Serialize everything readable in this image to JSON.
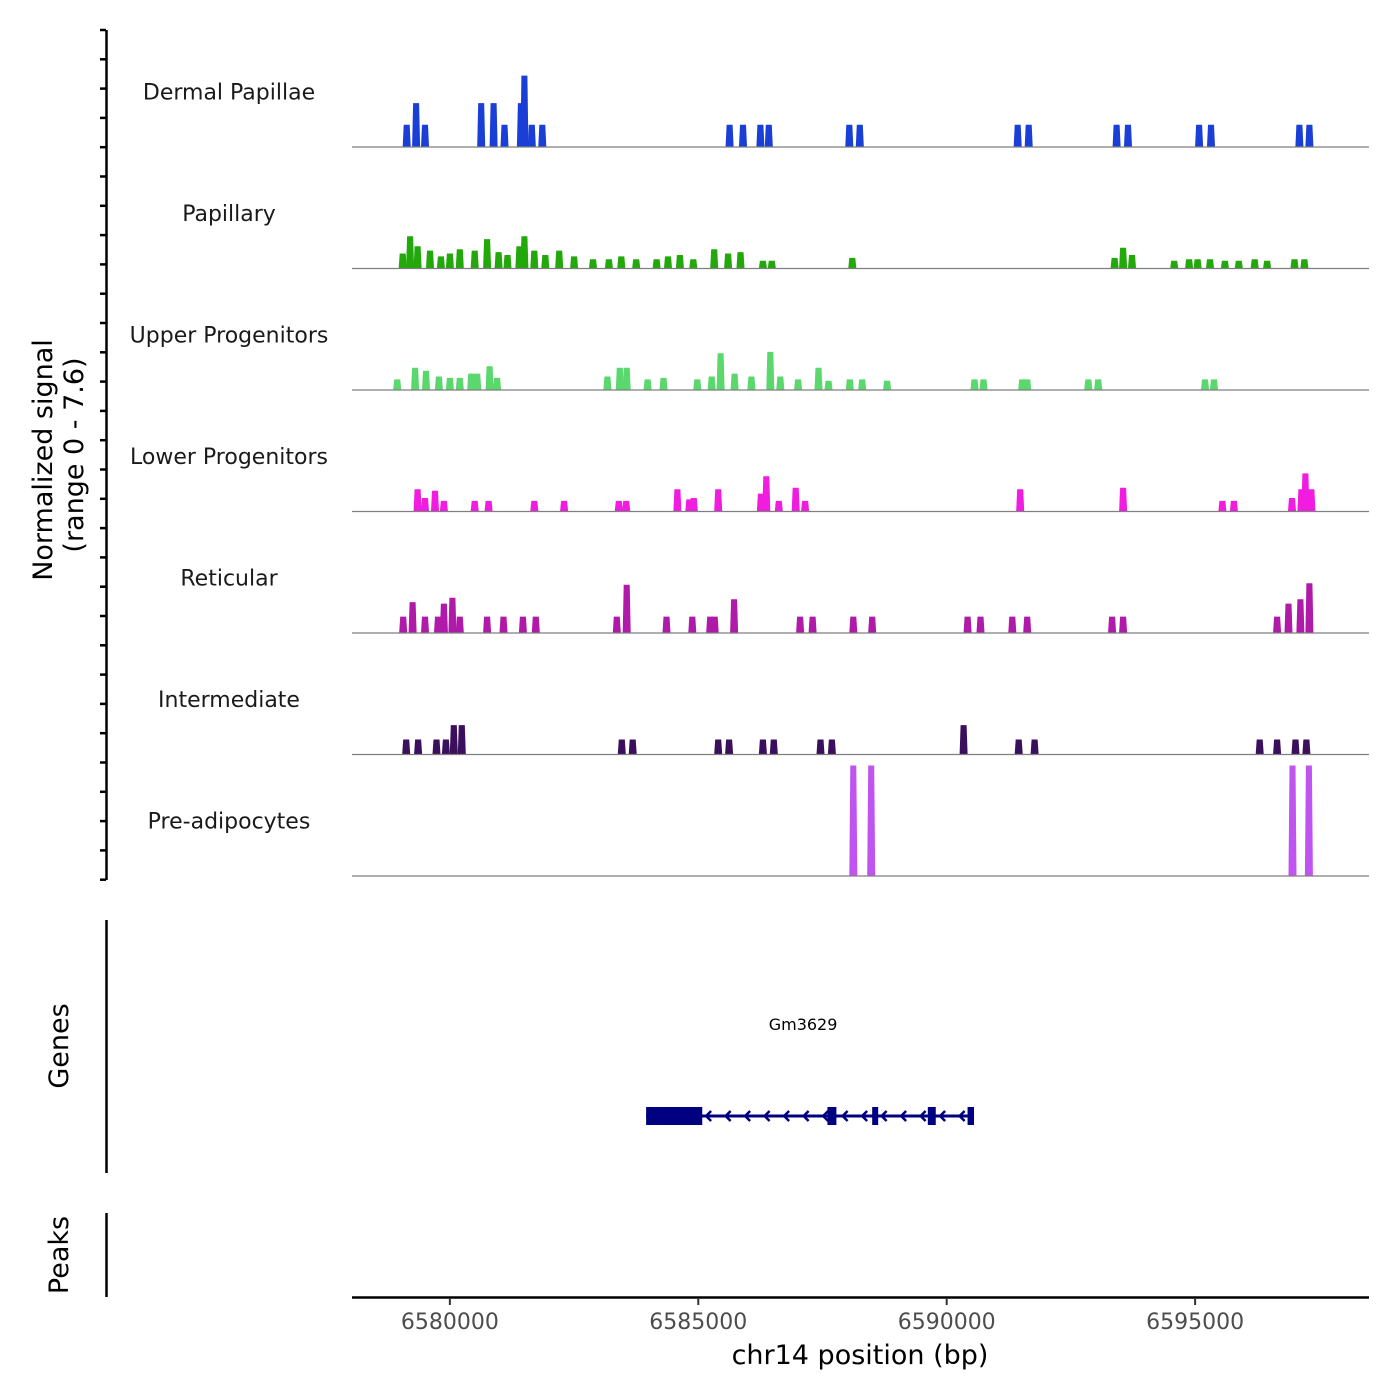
{
  "chart_data": {
    "type": "area",
    "title": "",
    "ylabel": "Normalized signal\n(range 0 - 7.6)",
    "ylabel_lines": [
      "Normalized signal",
      "(range 0 - 7.6)"
    ],
    "xlabel": "chr14 position (bp)",
    "xlim": [
      6578030,
      6598480
    ],
    "ylim": [
      0,
      7.6
    ],
    "x_ticks": [
      6580000,
      6585000,
      6590000,
      6595000
    ],
    "x_tick_labels": [
      "6580000",
      "6585000",
      "6590000",
      "6595000"
    ],
    "tracks": [
      {
        "name": "Dermal Papillae",
        "color": "#1a3fd6",
        "peaks": [
          [
            6579130,
            1.5
          ],
          [
            6579320,
            3
          ],
          [
            6579500,
            1.5
          ],
          [
            6580630,
            3
          ],
          [
            6580880,
            3
          ],
          [
            6581100,
            1.5
          ],
          [
            6581430,
            3
          ],
          [
            6581500,
            4.9
          ],
          [
            6581650,
            1.5
          ],
          [
            6581860,
            1.5
          ],
          [
            6585630,
            1.5
          ],
          [
            6585900,
            1.5
          ],
          [
            6586250,
            1.5
          ],
          [
            6586420,
            1.5
          ],
          [
            6588040,
            1.5
          ],
          [
            6588250,
            1.5
          ],
          [
            6591430,
            1.5
          ],
          [
            6591650,
            1.5
          ],
          [
            6593420,
            1.5
          ],
          [
            6593650,
            1.5
          ],
          [
            6595080,
            1.5
          ],
          [
            6595320,
            1.5
          ],
          [
            6597100,
            1.5
          ],
          [
            6597300,
            1.5
          ]
        ]
      },
      {
        "name": "Papillary",
        "color": "#22a80a",
        "peaks": [
          [
            6579050,
            1
          ],
          [
            6579200,
            2.2
          ],
          [
            6579350,
            1.5
          ],
          [
            6579600,
            1.2
          ],
          [
            6579820,
            0.8
          ],
          [
            6580000,
            1
          ],
          [
            6580200,
            1.3
          ],
          [
            6580500,
            1.2
          ],
          [
            6580750,
            2
          ],
          [
            6580980,
            1.1
          ],
          [
            6581160,
            0.9
          ],
          [
            6581400,
            1.5
          ],
          [
            6581500,
            2.2
          ],
          [
            6581700,
            1.2
          ],
          [
            6581920,
            0.9
          ],
          [
            6582200,
            1.2
          ],
          [
            6582500,
            0.8
          ],
          [
            6582880,
            0.6
          ],
          [
            6583200,
            0.6
          ],
          [
            6583450,
            0.8
          ],
          [
            6583750,
            0.6
          ],
          [
            6584160,
            0.6
          ],
          [
            6584390,
            0.8
          ],
          [
            6584630,
            0.9
          ],
          [
            6584900,
            0.6
          ],
          [
            6585320,
            1.3
          ],
          [
            6585600,
            1
          ],
          [
            6585850,
            1.1
          ],
          [
            6586300,
            0.5
          ],
          [
            6586480,
            0.5
          ],
          [
            6588100,
            0.7
          ],
          [
            6593380,
            0.7
          ],
          [
            6593550,
            1.4
          ],
          [
            6593730,
            0.9
          ],
          [
            6594580,
            0.5
          ],
          [
            6594880,
            0.6
          ],
          [
            6595050,
            0.6
          ],
          [
            6595300,
            0.6
          ],
          [
            6595600,
            0.5
          ],
          [
            6595880,
            0.5
          ],
          [
            6596200,
            0.6
          ],
          [
            6596450,
            0.5
          ],
          [
            6597000,
            0.6
          ],
          [
            6597200,
            0.6
          ]
        ]
      },
      {
        "name": "Upper Progenitors",
        "color": "#5ad86e",
        "peaks": [
          [
            6578940,
            0.7
          ],
          [
            6579300,
            1.5
          ],
          [
            6579520,
            1.3
          ],
          [
            6579780,
            0.9
          ],
          [
            6580000,
            0.8
          ],
          [
            6580200,
            0.8
          ],
          [
            6580430,
            1.1
          ],
          [
            6580550,
            1.1
          ],
          [
            6580800,
            1.6
          ],
          [
            6580950,
            0.8
          ],
          [
            6583170,
            0.9
          ],
          [
            6583420,
            1.5
          ],
          [
            6583560,
            1.5
          ],
          [
            6583980,
            0.7
          ],
          [
            6584300,
            0.8
          ],
          [
            6584980,
            0.7
          ],
          [
            6585270,
            0.9
          ],
          [
            6585450,
            2.5
          ],
          [
            6585730,
            1.1
          ],
          [
            6586070,
            0.9
          ],
          [
            6586450,
            2.6
          ],
          [
            6586650,
            0.9
          ],
          [
            6587010,
            0.7
          ],
          [
            6587420,
            1.5
          ],
          [
            6587620,
            0.6
          ],
          [
            6588050,
            0.7
          ],
          [
            6588300,
            0.7
          ],
          [
            6588800,
            0.6
          ],
          [
            6590560,
            0.7
          ],
          [
            6590740,
            0.7
          ],
          [
            6591520,
            0.7
          ],
          [
            6591620,
            0.7
          ],
          [
            6592850,
            0.7
          ],
          [
            6593050,
            0.7
          ],
          [
            6595200,
            0.7
          ],
          [
            6595380,
            0.7
          ]
        ]
      },
      {
        "name": "Lower Progenitors",
        "color": "#f01ce0",
        "peaks": [
          [
            6579350,
            1.5
          ],
          [
            6579500,
            0.9
          ],
          [
            6579700,
            1.4
          ],
          [
            6579880,
            0.7
          ],
          [
            6580500,
            0.7
          ],
          [
            6580780,
            0.7
          ],
          [
            6581700,
            0.7
          ],
          [
            6582300,
            0.7
          ],
          [
            6583400,
            0.7
          ],
          [
            6583550,
            0.7
          ],
          [
            6584580,
            1.5
          ],
          [
            6584820,
            0.8
          ],
          [
            6584910,
            0.9
          ],
          [
            6585400,
            1.5
          ],
          [
            6586260,
            1.2
          ],
          [
            6586370,
            2.4
          ],
          [
            6586620,
            0.7
          ],
          [
            6586960,
            1.6
          ],
          [
            6587150,
            0.7
          ],
          [
            6591480,
            1.5
          ],
          [
            6593550,
            1.6
          ],
          [
            6595550,
            0.7
          ],
          [
            6595780,
            0.7
          ],
          [
            6596950,
            0.9
          ],
          [
            6597140,
            1.5
          ],
          [
            6597220,
            2.6
          ],
          [
            6597340,
            1.5
          ]
        ]
      },
      {
        "name": "Reticular",
        "color": "#b01aa8",
        "peaks": [
          [
            6579060,
            1.1
          ],
          [
            6579250,
            2.1
          ],
          [
            6579500,
            1.1
          ],
          [
            6579760,
            1.1
          ],
          [
            6579880,
            2
          ],
          [
            6580050,
            2.4
          ],
          [
            6580200,
            1.1
          ],
          [
            6580750,
            1.1
          ],
          [
            6581080,
            1.1
          ],
          [
            6581470,
            1.1
          ],
          [
            6581730,
            1.1
          ],
          [
            6583360,
            1.1
          ],
          [
            6583560,
            3.3
          ],
          [
            6584360,
            1.1
          ],
          [
            6584880,
            1.1
          ],
          [
            6585240,
            1.1
          ],
          [
            6585330,
            1.1
          ],
          [
            6585720,
            2.3
          ],
          [
            6587050,
            1.1
          ],
          [
            6587300,
            1.1
          ],
          [
            6588120,
            1.1
          ],
          [
            6588500,
            1.1
          ],
          [
            6590420,
            1.1
          ],
          [
            6590680,
            1.1
          ],
          [
            6591320,
            1.1
          ],
          [
            6591620,
            1.1
          ],
          [
            6593330,
            1.1
          ],
          [
            6593550,
            1.1
          ],
          [
            6596650,
            1.1
          ],
          [
            6596880,
            2
          ],
          [
            6597120,
            2.3
          ],
          [
            6597300,
            3.4
          ]
        ]
      },
      {
        "name": "Intermediate",
        "color": "#3a0f5c",
        "peaks": [
          [
            6579120,
            1
          ],
          [
            6579360,
            1
          ],
          [
            6579730,
            1
          ],
          [
            6579920,
            1
          ],
          [
            6580080,
            2
          ],
          [
            6580240,
            2
          ],
          [
            6583460,
            1
          ],
          [
            6583680,
            1
          ],
          [
            6585400,
            1
          ],
          [
            6585620,
            1
          ],
          [
            6586300,
            1
          ],
          [
            6586520,
            1
          ],
          [
            6587460,
            1
          ],
          [
            6587690,
            1
          ],
          [
            6590340,
            2
          ],
          [
            6591450,
            1
          ],
          [
            6591770,
            1
          ],
          [
            6596300,
            1
          ],
          [
            6596650,
            1
          ],
          [
            6597020,
            1
          ],
          [
            6597240,
            1
          ]
        ]
      },
      {
        "name": "Pre-adipocytes",
        "color": "#c054f0",
        "peaks": [
          [
            6588120,
            7.6
          ],
          [
            6588480,
            7.6
          ],
          [
            6596960,
            7.6
          ],
          [
            6597290,
            7.6
          ]
        ]
      }
    ],
    "genes": {
      "panel_label": "Genes",
      "items": [
        {
          "name": "Gm3629",
          "color": "#000080",
          "strand": "-",
          "start": 6583950,
          "end": 6590550,
          "exons": [
            [
              6583950,
              6585080
            ],
            [
              6587600,
              6587780
            ],
            [
              6588500,
              6588620
            ],
            [
              6589620,
              6589780
            ],
            [
              6590420,
              6590550
            ]
          ]
        }
      ]
    },
    "peaks_panel": {
      "panel_label": "Peaks",
      "items": []
    }
  }
}
